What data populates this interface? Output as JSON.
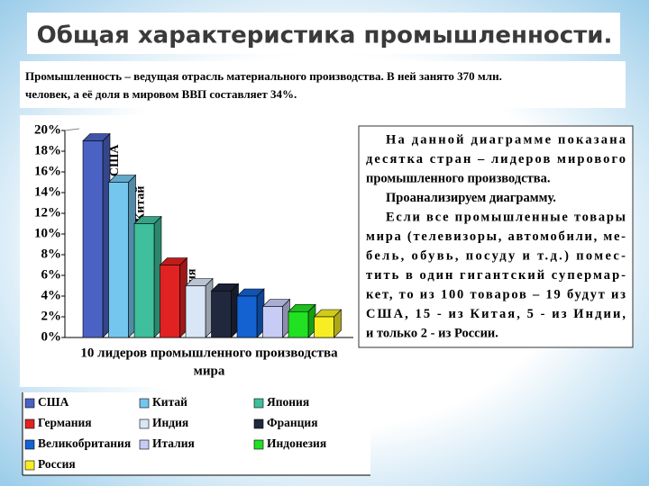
{
  "title": "Общая характеристика промышленности.",
  "intro": [
    "Промышленность – ведущая отрасль материального производства. В ней занято 370 млн.",
    "человек, а её доля в мировом ВВП составляет 34%."
  ],
  "side_text": [
    "На данной диаграмме показана",
    "десятка стран – лидеров мирового",
    "промышленного производства.",
    "Проанализируем диаграмму.",
    "Если все промышленные товары",
    "мира (телевизоры, автомобили, ме-",
    "бель, обувь, посуду и т.д.) помес-",
    "тить в один гигантский супермар-",
    "кет, то из 100 товаров – 19 будут из",
    "США, 15 - из Китая, 5 - из Индии,",
    "и только 2 - из России."
  ],
  "chart_data": {
    "type": "bar",
    "x_label": [
      "10 лидеров промышленного производства",
      "мира"
    ],
    "categories": [
      "США",
      "Китай",
      "Япония",
      "Германия",
      "Индия",
      "Франция",
      "Великобритания",
      "Италия",
      "Индонезия",
      "Россия"
    ],
    "values": [
      19,
      15,
      11,
      7,
      5,
      4.5,
      4,
      3,
      2.5,
      2
    ],
    "colors": [
      "#4a62c4",
      "#74c6ee",
      "#3fbf9c",
      "#e02222",
      "#d8e6f6",
      "#20283e",
      "#1462d2",
      "#c6ccf6",
      "#22e022",
      "#f6ee22"
    ],
    "ylim": [
      0,
      20
    ],
    "yticks": [
      {
        "value": 0,
        "label": "0%"
      },
      {
        "value": 2,
        "label": "2%"
      },
      {
        "value": 4,
        "label": "4%"
      },
      {
        "value": 6,
        "label": "6%"
      },
      {
        "value": 8,
        "label": "8%"
      },
      {
        "value": 10,
        "label": "10%"
      },
      {
        "value": 12,
        "label": "12%"
      },
      {
        "value": 14,
        "label": "14%"
      },
      {
        "value": 16,
        "label": "16%"
      },
      {
        "value": 18,
        "label": "18%"
      },
      {
        "value": 20,
        "label": "20%"
      }
    ]
  }
}
